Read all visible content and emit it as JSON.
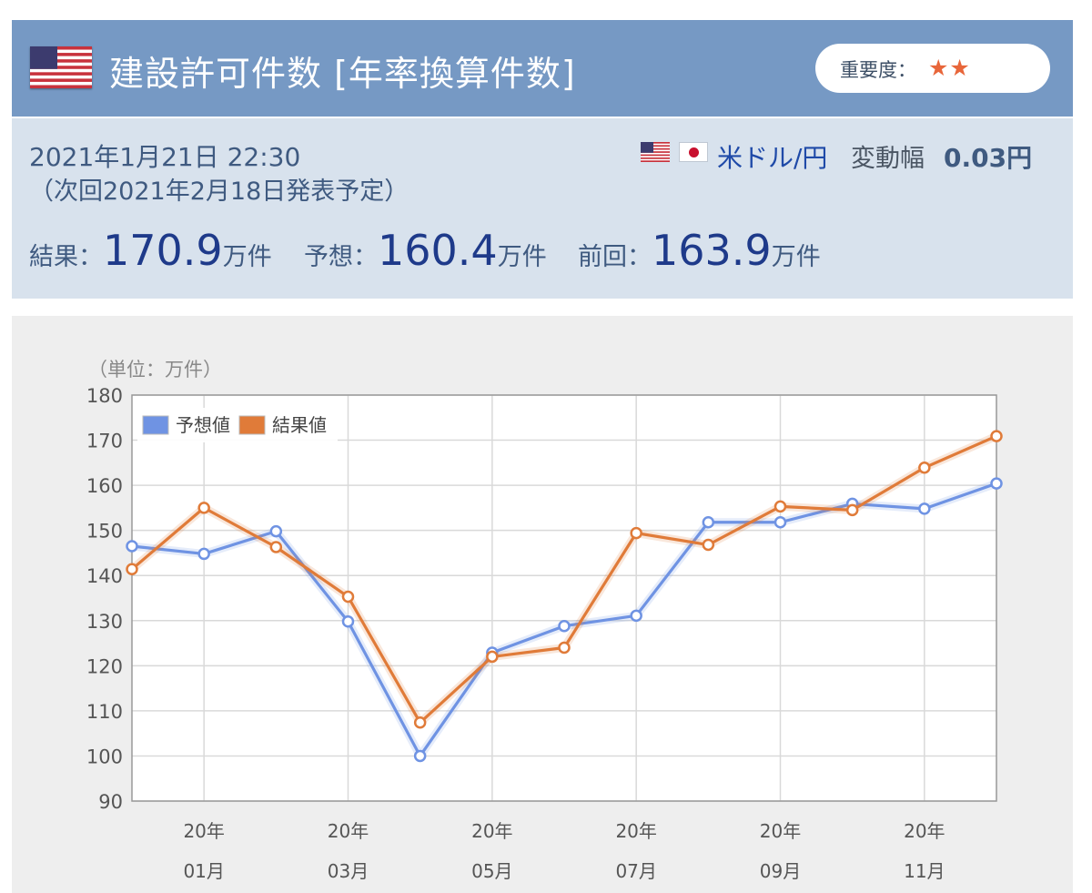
{
  "header": {
    "title": "建設許可件数 [年率換算件数]",
    "importance_label": "重要度：",
    "importance_stars": "★★",
    "flag_icon": "us-flag-icon",
    "colors": {
      "header_bg": "#7699c4",
      "star": "#e8663a"
    }
  },
  "info": {
    "datetime": "2021年1月21日 22:30",
    "next_release": "（次回2021年2月18日発表予定）",
    "pair": "米ドル/円",
    "range_label": "変動幅",
    "range_value": "0.03円",
    "result_label": "結果：",
    "result_value": "170.9",
    "forecast_label": "予想：",
    "forecast_value": "160.4",
    "previous_label": "前回：",
    "previous_value": "163.9",
    "unit": "万件"
  },
  "chart_data": {
    "type": "line",
    "unit_label": "（単位：万件）",
    "ylim": [
      90,
      180
    ],
    "yticks": [
      90,
      100,
      110,
      120,
      130,
      140,
      150,
      160,
      170,
      180
    ],
    "x_tick_labels": [
      {
        "index": 1,
        "year": "20年",
        "month": "01月"
      },
      {
        "index": 3,
        "year": "20年",
        "month": "03月"
      },
      {
        "index": 5,
        "year": "20年",
        "month": "05月"
      },
      {
        "index": 7,
        "year": "20年",
        "month": "07月"
      },
      {
        "index": 9,
        "year": "20年",
        "month": "09月"
      },
      {
        "index": 11,
        "year": "20年",
        "month": "11月"
      }
    ],
    "grid": true,
    "legend_position": "top-left",
    "series": [
      {
        "name": "予想値",
        "color": "#6f93e3",
        "values": [
          146.5,
          144.8,
          149.8,
          129.8,
          100.0,
          122.9,
          128.8,
          131.1,
          151.8,
          151.8,
          155.9,
          154.8,
          160.4
        ]
      },
      {
        "name": "結果値",
        "color": "#e07b39",
        "values": [
          141.4,
          155.0,
          146.3,
          135.3,
          107.4,
          122.0,
          124.0,
          149.4,
          146.8,
          155.3,
          154.5,
          163.9,
          170.9
        ]
      }
    ]
  }
}
